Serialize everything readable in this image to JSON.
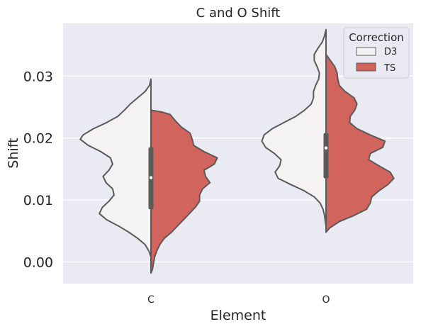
{
  "chart_data": {
    "type": "violin",
    "title": "C and O Shift",
    "xlabel": "Element",
    "ylabel": "Shift",
    "categories": [
      "C",
      "O"
    ],
    "ylim": [
      -0.0035,
      0.0385
    ],
    "yticks": [
      0.0,
      0.01,
      0.02,
      0.03
    ],
    "ytick_labels": [
      "0.00",
      "0.01",
      "0.02",
      "0.03"
    ],
    "grid": true,
    "legend": {
      "title": "Correction",
      "placement": "top-right",
      "entries": [
        "D3",
        "TS"
      ]
    },
    "colors": {
      "background": "#eaeaf2",
      "D3": "#f4f2f2",
      "TS": "#d1645d",
      "outline": "#5a5a5a"
    },
    "series": [
      {
        "name": "D3",
        "side": "left",
        "violins": [
          {
            "category": "C",
            "profile": [
              [
                0.0295,
                0.0
              ],
              [
                0.0285,
                0.02
              ],
              [
                0.0275,
                0.08
              ],
              [
                0.0265,
                0.18
              ],
              [
                0.0255,
                0.28
              ],
              [
                0.0245,
                0.36
              ],
              [
                0.0235,
                0.45
              ],
              [
                0.0225,
                0.6
              ],
              [
                0.0215,
                0.78
              ],
              [
                0.0205,
                0.92
              ],
              [
                0.0198,
                0.96
              ],
              [
                0.0188,
                0.85
              ],
              [
                0.0178,
                0.68
              ],
              [
                0.0168,
                0.55
              ],
              [
                0.0158,
                0.52
              ],
              [
                0.0148,
                0.57
              ],
              [
                0.0138,
                0.65
              ],
              [
                0.0128,
                0.61
              ],
              [
                0.0118,
                0.52
              ],
              [
                0.0108,
                0.5
              ],
              [
                0.0098,
                0.57
              ],
              [
                0.0088,
                0.66
              ],
              [
                0.0078,
                0.7
              ],
              [
                0.0068,
                0.6
              ],
              [
                0.0058,
                0.44
              ],
              [
                0.0048,
                0.3
              ],
              [
                0.0038,
                0.18
              ],
              [
                0.0028,
                0.08
              ],
              [
                0.0018,
                0.03
              ],
              [
                0.0008,
                0.0
              ]
            ]
          },
          {
            "category": "O",
            "profile": [
              [
                0.0375,
                0.0
              ],
              [
                0.0365,
                0.02
              ],
              [
                0.0355,
                0.05
              ],
              [
                0.0345,
                0.11
              ],
              [
                0.0335,
                0.16
              ],
              [
                0.0325,
                0.16
              ],
              [
                0.0315,
                0.12
              ],
              [
                0.0305,
                0.09
              ],
              [
                0.0295,
                0.1
              ],
              [
                0.0285,
                0.14
              ],
              [
                0.0275,
                0.17
              ],
              [
                0.0265,
                0.17
              ],
              [
                0.0255,
                0.2
              ],
              [
                0.0245,
                0.29
              ],
              [
                0.0235,
                0.41
              ],
              [
                0.0225,
                0.57
              ],
              [
                0.0215,
                0.73
              ],
              [
                0.0205,
                0.84
              ],
              [
                0.0195,
                0.87
              ],
              [
                0.0185,
                0.82
              ],
              [
                0.0175,
                0.7
              ],
              [
                0.0165,
                0.61
              ],
              [
                0.0155,
                0.63
              ],
              [
                0.0145,
                0.69
              ],
              [
                0.0135,
                0.65
              ],
              [
                0.0125,
                0.48
              ],
              [
                0.0115,
                0.3
              ],
              [
                0.0105,
                0.16
              ],
              [
                0.0095,
                0.08
              ],
              [
                0.0085,
                0.04
              ],
              [
                0.0075,
                0.02
              ],
              [
                0.0065,
                0.01
              ],
              [
                0.0058,
                0.0
              ]
            ]
          }
        ]
      },
      {
        "name": "TS",
        "side": "right",
        "violins": [
          {
            "category": "C",
            "profile": [
              [
                0.0245,
                0.0
              ],
              [
                0.0242,
                0.15
              ],
              [
                0.0238,
                0.26
              ],
              [
                0.0228,
                0.33
              ],
              [
                0.0218,
                0.41
              ],
              [
                0.0208,
                0.53
              ],
              [
                0.0198,
                0.56
              ],
              [
                0.0188,
                0.58
              ],
              [
                0.0178,
                0.72
              ],
              [
                0.0168,
                0.9
              ],
              [
                0.0158,
                0.86
              ],
              [
                0.0148,
                0.72
              ],
              [
                0.0138,
                0.74
              ],
              [
                0.0128,
                0.8
              ],
              [
                0.0118,
                0.7
              ],
              [
                0.0108,
                0.66
              ],
              [
                0.0098,
                0.66
              ],
              [
                0.0088,
                0.6
              ],
              [
                0.0078,
                0.52
              ],
              [
                0.0068,
                0.44
              ],
              [
                0.0058,
                0.36
              ],
              [
                0.0048,
                0.28
              ],
              [
                0.0038,
                0.18
              ],
              [
                0.0028,
                0.12
              ],
              [
                0.0018,
                0.08
              ],
              [
                0.0008,
                0.05
              ],
              [
                -0.0002,
                0.035
              ],
              [
                -0.0012,
                0.02
              ],
              [
                -0.0018,
                0.0
              ]
            ]
          },
          {
            "category": "O",
            "profile": [
              [
                0.0335,
                0.0
              ],
              [
                0.0325,
                0.06
              ],
              [
                0.0315,
                0.12
              ],
              [
                0.0305,
                0.15
              ],
              [
                0.0295,
                0.16
              ],
              [
                0.0285,
                0.18
              ],
              [
                0.0275,
                0.26
              ],
              [
                0.0265,
                0.38
              ],
              [
                0.0255,
                0.42
              ],
              [
                0.0245,
                0.39
              ],
              [
                0.0235,
                0.33
              ],
              [
                0.0225,
                0.32
              ],
              [
                0.0215,
                0.42
              ],
              [
                0.0205,
                0.6
              ],
              [
                0.0195,
                0.8
              ],
              [
                0.0185,
                0.77
              ],
              [
                0.0175,
                0.6
              ],
              [
                0.0165,
                0.58
              ],
              [
                0.0155,
                0.72
              ],
              [
                0.0145,
                0.87
              ],
              [
                0.0135,
                0.92
              ],
              [
                0.0125,
                0.84
              ],
              [
                0.0115,
                0.72
              ],
              [
                0.0105,
                0.62
              ],
              [
                0.0095,
                0.6
              ],
              [
                0.0085,
                0.55
              ],
              [
                0.0075,
                0.38
              ],
              [
                0.0065,
                0.18
              ],
              [
                0.0055,
                0.05
              ],
              [
                0.0048,
                0.0
              ]
            ]
          }
        ]
      }
    ],
    "box": [
      {
        "category": "C",
        "median": 0.0136,
        "q1": 0.0085,
        "q3": 0.0185,
        "whisker_low": 0.001,
        "whisker_high": 0.0262
      },
      {
        "category": "O",
        "median": 0.0184,
        "q1": 0.0135,
        "q3": 0.0208,
        "whisker_low": 0.0058,
        "whisker_high": 0.0303
      }
    ]
  }
}
